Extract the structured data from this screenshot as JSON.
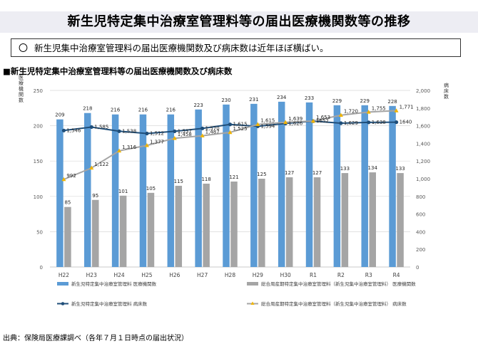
{
  "header": {
    "title": "新生児特定集中治療室管理料等の届出医療機関数等の推移"
  },
  "summary": {
    "marker": "〇",
    "text": "新生児集中治療室管理料の届出医療機関数及び病床数は近年ほぼ横ばい。"
  },
  "chart_heading": "■新生児特定集中治療室管理料等の届出医療機関数及び病床数",
  "source": "出典：保険局医療課調べ（各年７月１日時点の届出状況）",
  "chart_data": {
    "type": "bar",
    "categories": [
      "H22",
      "H23",
      "H24",
      "H25",
      "H26",
      "H27",
      "H28",
      "H29",
      "H30",
      "R1",
      "R2",
      "R3",
      "R4"
    ],
    "ylabel": "医療機関数",
    "y2label": "病床数",
    "ylim": [
      0,
      250
    ],
    "y2lim": [
      0,
      2000
    ],
    "yticks": [
      "0",
      "50",
      "100",
      "150",
      "200",
      "250"
    ],
    "y2ticks": [
      "0",
      "200",
      "400",
      "600",
      "800",
      "1,000",
      "1,200",
      "1,400",
      "1,600",
      "1,800",
      "2,000"
    ],
    "grid": true,
    "legend_position": "bottom",
    "series": [
      {
        "name": "新生児特定集中治療室管理料 医療機関数",
        "type": "bar",
        "axis": "left",
        "color": "#5b9bd5",
        "values": [
          209,
          218,
          216,
          216,
          216,
          223,
          230,
          231,
          234,
          233,
          229,
          229,
          228
        ]
      },
      {
        "name": "総合周産期特定集中治療室管理料（新生児集中治療室管理料） 医療機関数",
        "type": "bar",
        "axis": "left",
        "color": "#a5a5a5",
        "values": [
          85,
          95,
          101,
          105,
          115,
          118,
          121,
          125,
          127,
          127,
          133,
          134,
          133
        ]
      },
      {
        "name": "新生児特定集中治療室管理料 病床数",
        "type": "line",
        "axis": "right",
        "color": "#1f4e79",
        "marker": "circle",
        "values": [
          1546,
          1585,
          1538,
          1512,
          1537,
          1570,
          1615,
          1594,
          1626,
          1652,
          1629,
          1638,
          1640
        ],
        "labels": [
          "1,546",
          "1,585",
          "1,538",
          "1,512",
          "1,537",
          "1,570",
          "1,615",
          "1,594",
          "1,626",
          "1652",
          "1,629",
          "1,638",
          "1640"
        ]
      },
      {
        "name": "総合周産期特定集中治療室管理料（新生児集中治療室管理料） 病床数",
        "type": "line",
        "axis": "right",
        "color": "#a5a5a5",
        "marker_color": "#f0b400",
        "marker": "triangle",
        "values": [
          992,
          1122,
          1316,
          1377,
          1458,
          1487,
          1525,
          1615,
          1639,
          1653,
          1720,
          1755,
          1771
        ],
        "labels": [
          "992",
          "1,122",
          "1,316",
          "1,377",
          "1,458",
          "1,487",
          "1,525",
          "1,615",
          "1,639",
          "1,653",
          "1,720",
          "1,755",
          "1,771"
        ]
      }
    ]
  }
}
